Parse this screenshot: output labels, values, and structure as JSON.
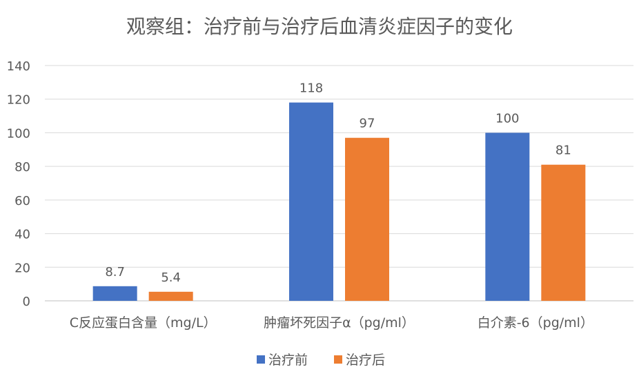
{
  "chart_data": {
    "type": "bar",
    "title": "观察组：治疗前与治疗后血清炎症因子的变化",
    "categories": [
      "C反应蛋白含量（mg/L）",
      "肿瘤坏死因子α（pg/ml）",
      "白介素-6（pg/ml）"
    ],
    "series": [
      {
        "name": "治疗前",
        "values": [
          8.7,
          118,
          100
        ],
        "labels": [
          "8.7",
          "118",
          "100"
        ],
        "color": "#4472C4"
      },
      {
        "name": "治疗后",
        "values": [
          5.4,
          97,
          81
        ],
        "labels": [
          "5.4",
          "97",
          "81"
        ],
        "color": "#ED7D31"
      }
    ],
    "ylim": [
      0,
      140
    ],
    "yticks": [
      "0",
      "20",
      "40",
      "60",
      "80",
      "100",
      "120",
      "140"
    ],
    "xlabel": "",
    "ylabel": "",
    "grid": true,
    "legend": "bottom"
  }
}
